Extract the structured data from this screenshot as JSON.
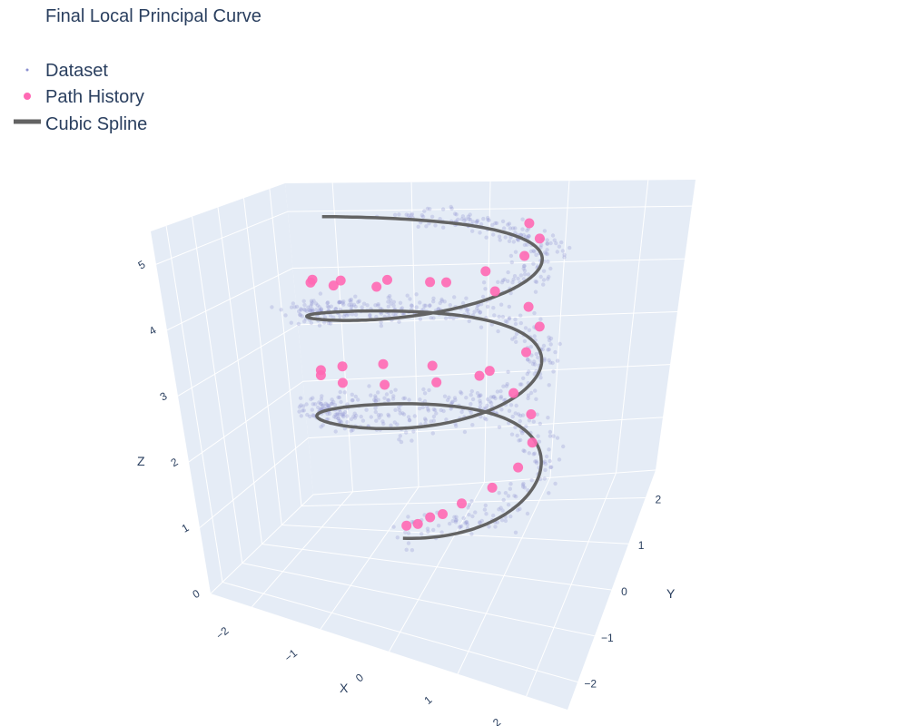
{
  "chart_data": {
    "type": "scatter3d",
    "title": "Final Local Principal Curve",
    "axes": {
      "x": {
        "title": "X",
        "range": [
          -2.6,
          2.6
        ],
        "ticks": [
          -2,
          -1,
          0,
          1,
          2
        ],
        "tick_labels": [
          "−2",
          "−1",
          "0",
          "1",
          "2"
        ]
      },
      "y": {
        "title": "Y",
        "range": [
          -2.6,
          2.6
        ],
        "ticks": [
          -2,
          -1,
          0,
          1,
          2
        ],
        "tick_labels": [
          "−2",
          "−1",
          "0",
          "1",
          "2"
        ]
      },
      "z": {
        "title": "Z",
        "range": [
          0,
          5.5
        ],
        "ticks": [
          0,
          1,
          2,
          3,
          4,
          5
        ],
        "tick_labels": [
          "0",
          "1",
          "2",
          "3",
          "4",
          "5"
        ]
      }
    },
    "legend": {
      "placement": "top-left",
      "entries": [
        {
          "name": "Dataset",
          "symbol": "dot"
        },
        {
          "name": "Path History",
          "symbol": "marker"
        },
        {
          "name": "Cubic Spline",
          "symbol": "line"
        }
      ]
    },
    "colors": {
      "dataset": "#8b90d0",
      "path_history": "#ff69b4",
      "spline": "#636363",
      "pane": "#e5ecf6",
      "grid": "#ffffff",
      "text": "#2a3f5f"
    },
    "series": [
      {
        "name": "Dataset",
        "kind": "points",
        "description_of_shape": "noisy helix, radius ~1.5, three turns",
        "helix": {
          "radius": 1.5,
          "z_start": 1.2,
          "z_end": 5.2,
          "turns": 2.6,
          "noise": 0.35
        }
      },
      {
        "name": "Path History",
        "kind": "markers",
        "points": [
          [
            0.0,
            -1.3,
            1.2
          ],
          [
            0.2,
            -1.4,
            1.3
          ],
          [
            0.4,
            -1.45,
            1.45
          ],
          [
            0.6,
            -1.5,
            1.55
          ],
          [
            0.85,
            -1.4,
            1.7
          ],
          [
            1.2,
            -1.1,
            1.85
          ],
          [
            1.45,
            -0.7,
            2.0
          ],
          [
            1.5,
            -0.2,
            2.15
          ],
          [
            1.3,
            0.4,
            2.3
          ],
          [
            0.9,
            0.9,
            2.4
          ],
          [
            0.3,
            1.3,
            2.5
          ],
          [
            -0.4,
            1.45,
            2.6
          ],
          [
            -1.0,
            1.2,
            2.7
          ],
          [
            -1.4,
            0.7,
            2.8
          ],
          [
            -1.5,
            0.1,
            2.9
          ],
          [
            -1.3,
            -0.5,
            3.0
          ],
          [
            -0.8,
            -1.1,
            3.1
          ],
          [
            -0.1,
            -1.45,
            3.25
          ],
          [
            0.6,
            -1.4,
            3.35
          ],
          [
            1.2,
            -1.0,
            3.45
          ],
          [
            1.5,
            -0.4,
            3.55
          ],
          [
            1.45,
            0.3,
            3.7
          ],
          [
            1.1,
            0.9,
            3.8
          ],
          [
            0.5,
            1.35,
            3.9
          ],
          [
            -0.2,
            1.5,
            4.0
          ],
          [
            -0.9,
            1.25,
            4.1
          ],
          [
            -1.35,
            0.75,
            4.2
          ],
          [
            -1.5,
            0.1,
            4.35
          ],
          [
            -1.3,
            -0.55,
            4.45
          ],
          [
            -0.8,
            -1.1,
            4.55
          ],
          [
            -0.1,
            -1.45,
            4.65
          ],
          [
            0.6,
            -1.4,
            4.75
          ],
          [
            1.2,
            -1.0,
            4.85
          ],
          [
            1.5,
            -0.4,
            4.95
          ],
          [
            1.45,
            0.3,
            5.05
          ],
          [
            1.1,
            0.9,
            5.15
          ]
        ]
      },
      {
        "name": "Cubic Spline",
        "kind": "line",
        "helix": {
          "radius": 1.5,
          "z_start": 1.1,
          "z_end": 5.3,
          "turns": 2.7
        }
      }
    ]
  }
}
